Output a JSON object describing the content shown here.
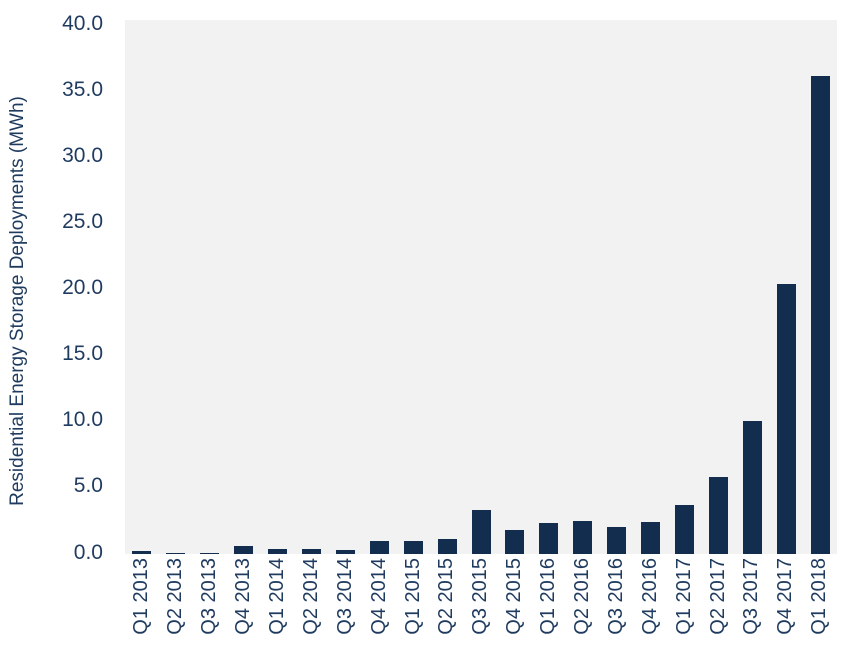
{
  "chart_data": {
    "type": "bar",
    "title": "",
    "xlabel": "",
    "ylabel": "Residential Energy Storage Deployments (MWh)",
    "categories": [
      "Q1 2013",
      "Q2 2013",
      "Q3 2013",
      "Q4 2013",
      "Q1 2014",
      "Q2 2014",
      "Q3 2014",
      "Q4 2014",
      "Q1 2015",
      "Q2 2015",
      "Q3 2015",
      "Q4 2015",
      "Q1 2016",
      "Q2 2016",
      "Q3 2016",
      "Q4 2016",
      "Q1 2017",
      "Q2 2017",
      "Q3 2017",
      "Q4 2017",
      "Q1 2018"
    ],
    "values": [
      0.2,
      0.1,
      0.1,
      0.6,
      0.4,
      0.4,
      0.3,
      1.0,
      1.0,
      1.1,
      3.3,
      1.8,
      2.3,
      2.5,
      2.0,
      2.4,
      3.7,
      5.8,
      10.0,
      20.2,
      35.8
    ],
    "ylim": [
      0,
      40
    ],
    "ytick_values": [
      0,
      5,
      10,
      15,
      20,
      25,
      30,
      35,
      40
    ],
    "ytick_labels": [
      "0.0",
      "5.0",
      "10.0",
      "15.0",
      "20.0",
      "25.0",
      "30.0",
      "35.0",
      "40.0"
    ],
    "grid": "off",
    "legend": "none",
    "colors": {
      "bar": "#122D4D",
      "text": "#1F3B5F",
      "plot_background": "#F2F2F2",
      "page_background": "#FFFFFF"
    }
  }
}
